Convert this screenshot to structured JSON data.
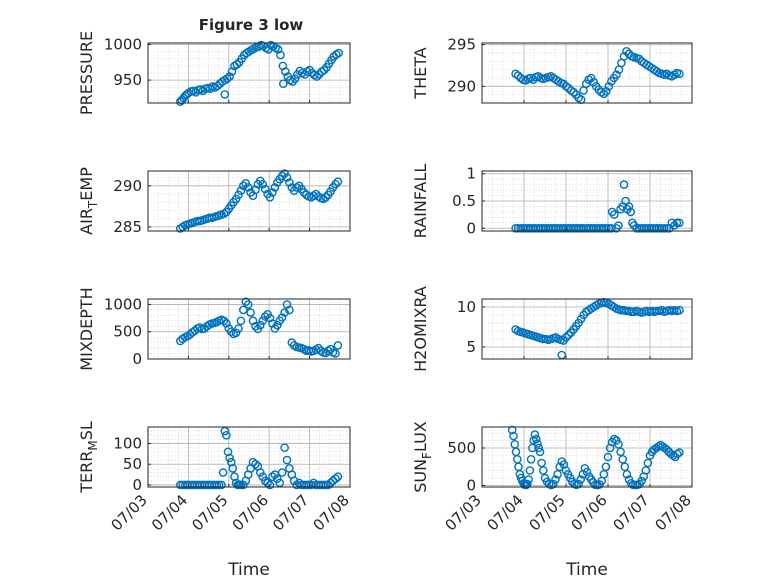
{
  "figure": {
    "title": "Figure 3 low",
    "colors": {
      "marker": "#0072BD",
      "axis": "#262626",
      "grid": "#b0b0b0",
      "minor_grid": "#d0d0d0"
    }
  },
  "chart_data": [
    {
      "type": "scatter",
      "ylabel": "PRESSURE",
      "ylabel_sub": "",
      "yticks": [
        950,
        1000
      ],
      "ylim": [
        918,
        1002
      ],
      "xlim": [
        "07/03",
        "07/08"
      ],
      "xticks": [
        "07/03",
        "07/04",
        "07/05",
        "07/06",
        "07/07",
        "07/08"
      ],
      "xtick_labels_shown": false,
      "grid": true,
      "x": [
        3.8,
        3.84,
        3.88,
        3.92,
        3.96,
        4.0,
        4.06,
        4.12,
        4.18,
        4.24,
        4.3,
        4.36,
        4.42,
        4.48,
        4.54,
        4.6,
        4.66,
        4.72,
        4.78,
        4.84,
        4.9,
        4.96,
        5.02,
        5.08,
        5.14,
        5.2,
        5.26,
        5.32,
        5.38,
        5.44,
        5.5,
        5.56,
        5.62,
        5.68,
        5.74,
        5.8,
        5.86,
        5.92,
        5.98,
        6.04,
        6.1,
        6.16,
        6.22,
        6.28,
        6.34,
        6.4,
        6.46,
        6.52,
        6.58,
        6.64,
        6.7,
        6.76,
        6.82,
        6.88,
        6.94,
        7.0,
        7.06,
        7.12,
        7.18,
        7.24,
        7.3,
        7.36,
        7.42,
        7.48,
        7.54,
        7.6,
        7.66,
        7.72,
        4.9,
        6.35
      ],
      "y": [
        920,
        922,
        925,
        928,
        930,
        932,
        934,
        935,
        933,
        936,
        937,
        935,
        938,
        939,
        938,
        941,
        940,
        942,
        945,
        948,
        950,
        952,
        955,
        962,
        970,
        972,
        975,
        980,
        985,
        988,
        990,
        992,
        994,
        996,
        997,
        999,
        998,
        995,
        993,
        999,
        997,
        995,
        993,
        985,
        970,
        962,
        955,
        950,
        948,
        952,
        958,
        963,
        960,
        958,
        962,
        964,
        960,
        957,
        955,
        958,
        962,
        964,
        968,
        973,
        978,
        983,
        986,
        988,
        930,
        945
      ]
    },
    {
      "type": "scatter",
      "ylabel": "THETA",
      "ylabel_sub": "",
      "yticks": [
        290,
        295
      ],
      "ylim": [
        288,
        295.2
      ],
      "xlim": [
        "07/03",
        "07/08"
      ],
      "xticks": [
        "07/03",
        "07/04",
        "07/05",
        "07/06",
        "07/07",
        "07/08"
      ],
      "xtick_labels_shown": false,
      "grid": true,
      "x": [
        3.8,
        3.86,
        3.92,
        3.98,
        4.04,
        4.1,
        4.16,
        4.22,
        4.28,
        4.34,
        4.4,
        4.46,
        4.52,
        4.58,
        4.64,
        4.7,
        4.76,
        4.82,
        4.88,
        4.94,
        5.0,
        5.06,
        5.12,
        5.18,
        5.24,
        5.3,
        5.36,
        5.42,
        5.48,
        5.54,
        5.6,
        5.66,
        5.72,
        5.78,
        5.84,
        5.9,
        5.96,
        6.02,
        6.08,
        6.14,
        6.2,
        6.26,
        6.32,
        6.38,
        6.44,
        6.5,
        6.56,
        6.62,
        6.68,
        6.74,
        6.8,
        6.86,
        6.92,
        6.98,
        7.04,
        7.1,
        7.16,
        7.22,
        7.28,
        7.34,
        7.4,
        7.46,
        7.52,
        7.58,
        7.64,
        7.7
      ],
      "y": [
        291.5,
        291.3,
        291.0,
        290.8,
        290.7,
        290.9,
        291.0,
        290.8,
        291.1,
        291.2,
        291.0,
        290.9,
        291.0,
        291.1,
        291.2,
        291.0,
        290.8,
        290.6,
        290.4,
        290.3,
        290.0,
        289.8,
        289.5,
        289.3,
        289.0,
        288.6,
        288.4,
        289.5,
        290.3,
        290.8,
        291.0,
        290.5,
        290.0,
        289.6,
        289.3,
        289.1,
        289.4,
        290.0,
        290.6,
        291.0,
        291.4,
        292.0,
        292.8,
        293.6,
        294.2,
        293.9,
        293.6,
        293.5,
        293.4,
        293.3,
        293.0,
        292.8,
        292.6,
        292.4,
        292.2,
        292.0,
        291.8,
        291.6,
        291.5,
        291.4,
        291.5,
        291.3,
        291.2,
        291.4,
        291.6,
        291.5
      ]
    },
    {
      "type": "scatter",
      "ylabel": "AIR",
      "ylabel_sub": "T",
      "ylabel_tail": "EMP",
      "yticks": [
        285,
        290
      ],
      "ylim": [
        284.5,
        291.8
      ],
      "xlim": [
        "07/03",
        "07/08"
      ],
      "xticks": [
        "07/03",
        "07/04",
        "07/05",
        "07/06",
        "07/07",
        "07/08"
      ],
      "xtick_labels_shown": false,
      "grid": true,
      "x": [
        3.8,
        3.86,
        3.92,
        3.98,
        4.04,
        4.1,
        4.16,
        4.22,
        4.28,
        4.34,
        4.4,
        4.46,
        4.52,
        4.58,
        4.64,
        4.7,
        4.76,
        4.82,
        4.88,
        4.94,
        5.0,
        5.06,
        5.12,
        5.18,
        5.24,
        5.3,
        5.36,
        5.42,
        5.48,
        5.54,
        5.6,
        5.66,
        5.72,
        5.78,
        5.84,
        5.9,
        5.96,
        6.02,
        6.08,
        6.14,
        6.2,
        6.26,
        6.32,
        6.38,
        6.44,
        6.5,
        6.56,
        6.62,
        6.68,
        6.74,
        6.8,
        6.86,
        6.92,
        6.98,
        7.04,
        7.1,
        7.16,
        7.22,
        7.28,
        7.34,
        7.4,
        7.46,
        7.52,
        7.58,
        7.64,
        7.7
      ],
      "y": [
        284.8,
        285.0,
        285.2,
        285.3,
        285.4,
        285.5,
        285.6,
        285.7,
        285.7,
        285.8,
        285.9,
        286.0,
        286.1,
        286.1,
        286.2,
        286.3,
        286.4,
        286.5,
        286.6,
        286.8,
        287.2,
        287.6,
        288.0,
        288.4,
        288.9,
        289.4,
        290.0,
        290.3,
        289.8,
        289.2,
        288.8,
        289.5,
        290.2,
        290.6,
        290.2,
        289.6,
        289.0,
        288.6,
        289.2,
        289.8,
        290.4,
        290.8,
        291.2,
        291.5,
        291.0,
        290.4,
        289.8,
        289.4,
        289.8,
        290.0,
        289.6,
        289.2,
        288.9,
        288.7,
        288.6,
        288.8,
        289.0,
        288.7,
        288.5,
        288.4,
        288.6,
        288.9,
        289.3,
        289.8,
        290.2,
        290.5
      ]
    },
    {
      "type": "scatter",
      "ylabel": "RAINFALL",
      "ylabel_sub": "",
      "yticks": [
        0,
        0.5,
        1
      ],
      "ylim": [
        -0.05,
        1.05
      ],
      "xlim": [
        "07/03",
        "07/08"
      ],
      "xticks": [
        "07/03",
        "07/04",
        "07/05",
        "07/06",
        "07/07",
        "07/08"
      ],
      "xtick_labels_shown": false,
      "grid": true,
      "x": [
        3.8,
        3.86,
        3.92,
        3.98,
        4.04,
        4.1,
        4.16,
        4.22,
        4.28,
        4.34,
        4.4,
        4.46,
        4.52,
        4.58,
        4.64,
        4.7,
        4.76,
        4.82,
        4.88,
        4.94,
        5.0,
        5.06,
        5.12,
        5.18,
        5.24,
        5.3,
        5.36,
        5.42,
        5.48,
        5.54,
        5.6,
        5.66,
        5.72,
        5.78,
        5.84,
        5.9,
        5.96,
        6.02,
        6.08,
        6.1,
        6.15,
        6.2,
        6.25,
        6.3,
        6.35,
        6.38,
        6.42,
        6.46,
        6.5,
        6.54,
        6.58,
        6.62,
        6.68,
        6.74,
        6.8,
        6.86,
        6.92,
        6.98,
        7.04,
        7.1,
        7.16,
        7.22,
        7.28,
        7.34,
        7.4,
        7.46,
        7.52,
        7.58,
        7.64,
        7.7
      ],
      "y": [
        0,
        0,
        0,
        0,
        0,
        0,
        0,
        0,
        0,
        0,
        0,
        0,
        0,
        0,
        0,
        0,
        0,
        0,
        0,
        0,
        0,
        0,
        0,
        0,
        0,
        0,
        0,
        0,
        0,
        0,
        0,
        0,
        0,
        0,
        0,
        0,
        0,
        0,
        0,
        0.3,
        0.25,
        0,
        0.05,
        0.35,
        0.4,
        0.8,
        0.5,
        0.35,
        0.4,
        0.3,
        0.1,
        0.05,
        0,
        0,
        0,
        0,
        0,
        0,
        0,
        0,
        0,
        0,
        0,
        0,
        0,
        0,
        0.1,
        0.05,
        0.1,
        0.1
      ]
    },
    {
      "type": "scatter",
      "ylabel": "MIXDEPTH",
      "ylabel_sub": "",
      "yticks": [
        0,
        500,
        1000
      ],
      "ylim": [
        0,
        1100
      ],
      "xlim": [
        "07/03",
        "07/08"
      ],
      "xticks": [
        "07/03",
        "07/04",
        "07/05",
        "07/06",
        "07/07",
        "07/08"
      ],
      "xtick_labels_shown": false,
      "grid": true,
      "x": [
        3.8,
        3.86,
        3.92,
        3.98,
        4.04,
        4.1,
        4.16,
        4.22,
        4.28,
        4.34,
        4.4,
        4.46,
        4.52,
        4.58,
        4.64,
        4.7,
        4.76,
        4.82,
        4.88,
        4.94,
        5.0,
        5.06,
        5.12,
        5.18,
        5.24,
        5.3,
        5.36,
        5.42,
        5.48,
        5.54,
        5.6,
        5.66,
        5.72,
        5.78,
        5.84,
        5.9,
        5.96,
        6.02,
        6.08,
        6.14,
        6.2,
        6.26,
        6.32,
        6.38,
        6.44,
        6.5,
        6.56,
        6.62,
        6.68,
        6.74,
        6.8,
        6.86,
        6.92,
        6.98,
        7.04,
        7.1,
        7.16,
        7.22,
        7.28,
        7.34,
        7.4,
        7.46,
        7.52,
        7.58,
        7.64,
        7.7
      ],
      "y": [
        330,
        370,
        400,
        420,
        450,
        490,
        520,
        560,
        580,
        550,
        560,
        600,
        630,
        650,
        660,
        680,
        700,
        720,
        700,
        650,
        560,
        500,
        460,
        480,
        560,
        700,
        900,
        1050,
        1000,
        850,
        700,
        600,
        550,
        620,
        700,
        780,
        820,
        750,
        650,
        560,
        620,
        700,
        760,
        850,
        1000,
        900,
        300,
        250,
        220,
        210,
        200,
        180,
        150,
        160,
        140,
        150,
        170,
        200,
        150,
        120,
        110,
        150,
        180,
        120,
        100,
        250
      ]
    },
    {
      "type": "scatter",
      "ylabel": "H2OMIXRA",
      "ylabel_sub": "",
      "yticks": [
        5,
        10
      ],
      "ylim": [
        3.5,
        11
      ],
      "xlim": [
        "07/03",
        "07/08"
      ],
      "xticks": [
        "07/03",
        "07/04",
        "07/05",
        "07/06",
        "07/07",
        "07/08"
      ],
      "xtick_labels_shown": false,
      "grid": true,
      "x": [
        3.8,
        3.86,
        3.92,
        3.98,
        4.04,
        4.1,
        4.16,
        4.22,
        4.28,
        4.34,
        4.4,
        4.46,
        4.52,
        4.58,
        4.64,
        4.7,
        4.76,
        4.82,
        4.88,
        4.94,
        5.0,
        5.06,
        5.12,
        5.18,
        5.24,
        5.3,
        5.36,
        5.42,
        5.48,
        5.54,
        5.6,
        5.66,
        5.72,
        5.78,
        5.84,
        5.9,
        5.96,
        6.02,
        6.08,
        6.14,
        6.2,
        6.26,
        6.32,
        6.38,
        6.44,
        6.5,
        6.56,
        6.62,
        6.68,
        6.74,
        6.8,
        6.86,
        6.92,
        6.98,
        7.04,
        7.1,
        7.16,
        7.22,
        7.28,
        7.34,
        7.4,
        7.46,
        7.52,
        7.58,
        7.64,
        7.7,
        4.9
      ],
      "y": [
        7.2,
        7.0,
        6.9,
        6.8,
        6.7,
        6.6,
        6.5,
        6.4,
        6.3,
        6.2,
        6.1,
        6.0,
        6.0,
        5.9,
        6.0,
        6.1,
        6.2,
        6.0,
        5.9,
        5.8,
        6.2,
        6.5,
        6.8,
        7.2,
        7.6,
        8.0,
        8.5,
        9.0,
        9.4,
        9.6,
        9.8,
        10.0,
        10.2,
        10.4,
        10.5,
        10.6,
        10.5,
        10.4,
        10.2,
        10.0,
        9.8,
        9.7,
        9.6,
        9.6,
        9.5,
        9.5,
        9.4,
        9.4,
        9.5,
        9.4,
        9.3,
        9.4,
        9.5,
        9.4,
        9.5,
        9.4,
        9.5,
        9.5,
        9.6,
        9.4,
        9.5,
        9.6,
        9.5,
        9.6,
        9.5,
        9.6,
        4.0
      ]
    },
    {
      "type": "scatter",
      "ylabel": "TERR",
      "ylabel_sub": "M",
      "ylabel_tail": "SL",
      "yticks": [
        0,
        50,
        100
      ],
      "ylim": [
        -5,
        140
      ],
      "xlim": [
        "07/03",
        "07/08"
      ],
      "xticks": [
        "07/03",
        "07/04",
        "07/05",
        "07/06",
        "07/07",
        "07/08"
      ],
      "xtick_labels_shown": true,
      "xlabel": "Time",
      "grid": true,
      "x": [
        3.8,
        3.86,
        3.92,
        3.98,
        4.04,
        4.1,
        4.16,
        4.22,
        4.28,
        4.34,
        4.4,
        4.46,
        4.52,
        4.58,
        4.64,
        4.7,
        4.76,
        4.82,
        4.86,
        4.9,
        4.94,
        4.98,
        5.02,
        5.06,
        5.1,
        5.14,
        5.18,
        5.22,
        5.26,
        5.3,
        5.36,
        5.42,
        5.48,
        5.54,
        5.6,
        5.66,
        5.72,
        5.78,
        5.84,
        5.9,
        5.96,
        6.02,
        6.08,
        6.14,
        6.2,
        6.26,
        6.32,
        6.38,
        6.44,
        6.5,
        6.56,
        6.62,
        6.68,
        6.74,
        6.8,
        6.86,
        6.92,
        6.98,
        7.04,
        7.1,
        7.16,
        7.22,
        7.28,
        7.34,
        7.4,
        7.46,
        7.52,
        7.58,
        7.64,
        7.7
      ],
      "y": [
        0,
        0,
        0,
        0,
        0,
        0,
        0,
        0,
        0,
        0,
        0,
        0,
        0,
        0,
        0,
        0,
        0,
        0,
        30,
        130,
        120,
        80,
        65,
        55,
        40,
        20,
        5,
        0,
        0,
        0,
        0,
        10,
        25,
        40,
        55,
        50,
        45,
        30,
        20,
        10,
        5,
        0,
        20,
        25,
        15,
        5,
        30,
        90,
        60,
        40,
        25,
        10,
        0,
        5,
        0,
        0,
        0,
        0,
        0,
        5,
        0,
        0,
        0,
        0,
        0,
        0,
        5,
        10,
        15,
        20
      ]
    },
    {
      "type": "scatter",
      "ylabel": "SUN",
      "ylabel_sub": "F",
      "ylabel_tail": "LUX",
      "yticks": [
        0,
        500
      ],
      "ylim": [
        -20,
        780
      ],
      "xlim": [
        "07/03",
        "07/08"
      ],
      "xticks": [
        "07/03",
        "07/04",
        "07/05",
        "07/06",
        "07/07",
        "07/08"
      ],
      "xtick_labels_shown": true,
      "xlabel": "Time",
      "grid": true,
      "x": [
        3.72,
        3.75,
        3.78,
        3.81,
        3.84,
        3.87,
        3.9,
        3.93,
        3.96,
        3.99,
        4.02,
        4.05,
        4.08,
        4.11,
        4.14,
        4.17,
        4.2,
        4.23,
        4.26,
        4.29,
        4.32,
        4.35,
        4.38,
        4.42,
        4.46,
        4.5,
        4.55,
        4.6,
        4.65,
        4.7,
        4.75,
        4.8,
        4.85,
        4.9,
        4.95,
        5.0,
        5.05,
        5.1,
        5.15,
        5.2,
        5.25,
        5.3,
        5.35,
        5.4,
        5.45,
        5.5,
        5.55,
        5.6,
        5.65,
        5.7,
        5.75,
        5.8,
        5.85,
        5.9,
        5.95,
        6.0,
        6.05,
        6.1,
        6.15,
        6.2,
        6.25,
        6.3,
        6.35,
        6.4,
        6.45,
        6.5,
        6.55,
        6.6,
        6.65,
        6.7,
        6.75,
        6.8,
        6.85,
        6.9,
        6.95,
        7.0,
        7.05,
        7.1,
        7.15,
        7.2,
        7.25,
        7.3,
        7.35,
        7.4,
        7.45,
        7.5,
        7.55,
        7.6,
        7.65,
        7.7
      ],
      "y": [
        740,
        660,
        550,
        450,
        350,
        250,
        150,
        100,
        60,
        30,
        10,
        5,
        20,
        80,
        200,
        350,
        500,
        600,
        680,
        620,
        560,
        500,
        450,
        300,
        200,
        100,
        50,
        20,
        5,
        20,
        80,
        150,
        250,
        320,
        280,
        200,
        150,
        100,
        50,
        20,
        10,
        20,
        80,
        150,
        230,
        180,
        120,
        80,
        40,
        10,
        5,
        15,
        60,
        150,
        250,
        380,
        500,
        580,
        620,
        600,
        550,
        450,
        350,
        250,
        150,
        80,
        30,
        10,
        5,
        10,
        20,
        60,
        120,
        200,
        300,
        400,
        450,
        480,
        500,
        520,
        540,
        520,
        500,
        480,
        450,
        420,
        400,
        380,
        420,
        440
      ]
    }
  ]
}
